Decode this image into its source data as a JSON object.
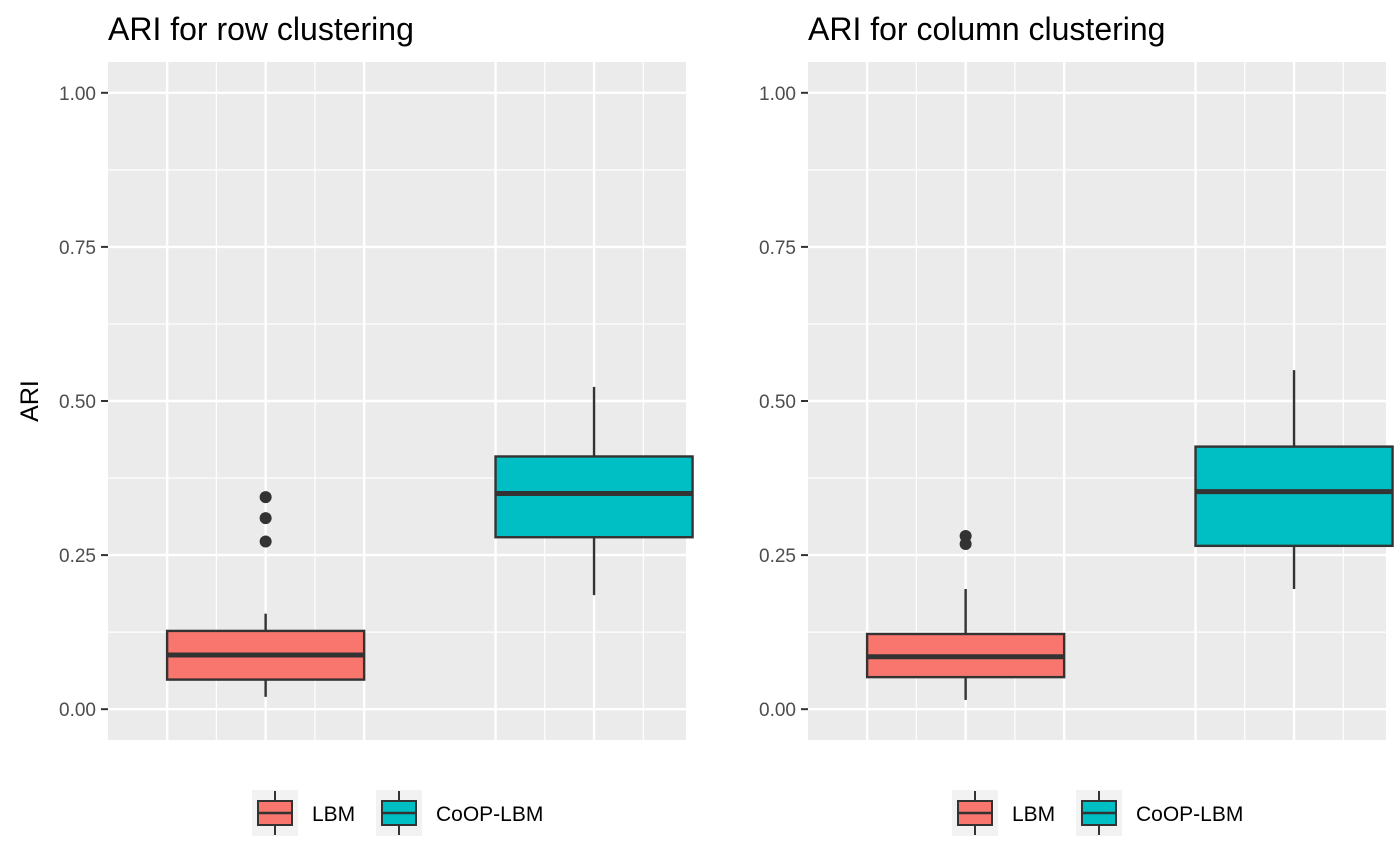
{
  "chart_data": [
    {
      "type": "boxplot",
      "title": "ARI for row clustering",
      "xlabel": "",
      "ylabel": "ARI",
      "ylim": [
        -0.05,
        1.05
      ],
      "yticks": [
        0.0,
        0.25,
        0.5,
        0.75,
        1.0
      ],
      "ytick_labels": [
        "0.00",
        "0.25",
        "0.50",
        "0.75",
        "1.00"
      ],
      "grid": true,
      "legend_position": "bottom",
      "series": [
        {
          "name": "LBM",
          "color": "#F8766D",
          "whisker_low": 0.02,
          "q1": 0.048,
          "median": 0.088,
          "q3": 0.127,
          "whisker_high": 0.155,
          "outliers": [
            0.272,
            0.31,
            0.344
          ]
        },
        {
          "name": "CoOP-LBM",
          "color": "#00BFC4",
          "whisker_low": 0.185,
          "q1": 0.279,
          "median": 0.35,
          "q3": 0.41,
          "whisker_high": 0.523,
          "outliers": []
        }
      ]
    },
    {
      "type": "boxplot",
      "title": "ARI for column clustering",
      "xlabel": "",
      "ylabel": "",
      "ylim": [
        -0.05,
        1.05
      ],
      "yticks": [
        0.0,
        0.25,
        0.5,
        0.75,
        1.0
      ],
      "ytick_labels": [
        "0.00",
        "0.25",
        "0.50",
        "0.75",
        "1.00"
      ],
      "grid": true,
      "legend_position": "bottom",
      "series": [
        {
          "name": "LBM",
          "color": "#F8766D",
          "whisker_low": 0.015,
          "q1": 0.052,
          "median": 0.085,
          "q3": 0.122,
          "whisker_high": 0.195,
          "outliers": [
            0.268,
            0.281
          ]
        },
        {
          "name": "CoOP-LBM",
          "color": "#00BFC4",
          "whisker_low": 0.195,
          "q1": 0.265,
          "median": 0.353,
          "q3": 0.426,
          "whisker_high": 0.55,
          "outliers": []
        }
      ]
    }
  ],
  "colors": {
    "panel_background": "#EBEBEB",
    "grid_line": "#FFFFFF",
    "box_outline": "#333333"
  }
}
